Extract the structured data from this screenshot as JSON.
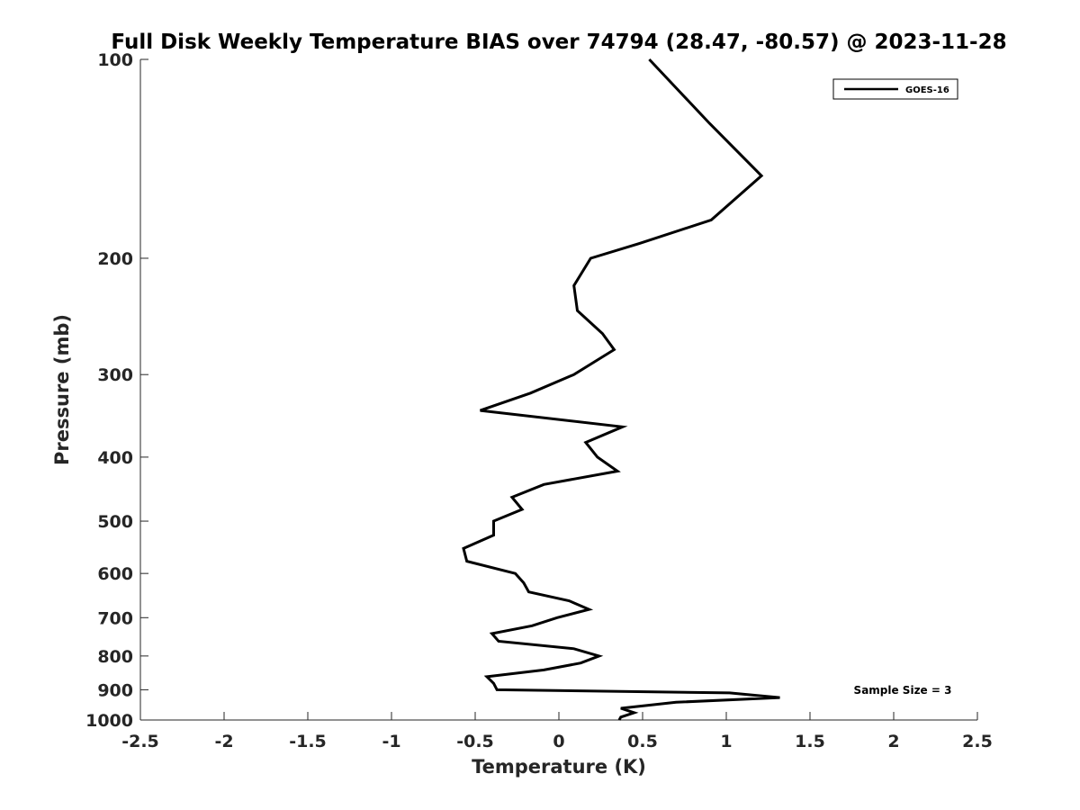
{
  "chart_data": {
    "type": "line",
    "title": "Full Disk Weekly Temperature BIAS over 74794 (28.47, -80.57) @ 2023-11-28",
    "xlabel": "Temperature (K)",
    "ylabel": "Pressure (mb)",
    "xlim": [
      -2.5,
      2.5
    ],
    "ylim": [
      100,
      1000
    ],
    "y_scale": "log",
    "y_reversed": true,
    "grid": false,
    "legend_position": "top-right",
    "xticks": [
      "-2.5",
      "-2",
      "-1.5",
      "-1",
      "-0.5",
      "0",
      "0.5",
      "1",
      "1.5",
      "2",
      "2.5"
    ],
    "yticks": [
      "100",
      "200",
      "300",
      "400",
      "500",
      "600",
      "700",
      "800",
      "900",
      "1000"
    ],
    "annotation": "Sample Size = 3",
    "series": [
      {
        "name": "GOES-16",
        "color": "#000000",
        "points": [
          [
            0.54,
            100
          ],
          [
            0.9,
            125
          ],
          [
            1.21,
            150
          ],
          [
            0.91,
            175
          ],
          [
            0.48,
            190
          ],
          [
            0.19,
            200
          ],
          [
            0.09,
            220
          ],
          [
            0.11,
            240
          ],
          [
            0.26,
            260
          ],
          [
            0.33,
            275
          ],
          [
            0.09,
            300
          ],
          [
            -0.17,
            320
          ],
          [
            -0.47,
            340
          ],
          [
            0.38,
            360
          ],
          [
            0.16,
            380
          ],
          [
            0.23,
            400
          ],
          [
            0.35,
            420
          ],
          [
            -0.09,
            440
          ],
          [
            -0.28,
            460
          ],
          [
            -0.22,
            480
          ],
          [
            -0.39,
            500
          ],
          [
            -0.39,
            525
          ],
          [
            -0.57,
            550
          ],
          [
            -0.55,
            575
          ],
          [
            -0.26,
            600
          ],
          [
            -0.21,
            620
          ],
          [
            -0.18,
            640
          ],
          [
            0.06,
            660
          ],
          [
            0.18,
            680
          ],
          [
            -0.01,
            700
          ],
          [
            -0.16,
            720
          ],
          [
            -0.4,
            740
          ],
          [
            -0.36,
            760
          ],
          [
            0.09,
            780
          ],
          [
            0.24,
            800
          ],
          [
            0.13,
            820
          ],
          [
            -0.09,
            840
          ],
          [
            -0.43,
            860
          ],
          [
            -0.39,
            880
          ],
          [
            -0.37,
            900
          ],
          [
            1.02,
            910
          ],
          [
            1.32,
            925
          ],
          [
            0.7,
            940
          ],
          [
            0.37,
            960
          ],
          [
            0.45,
            975
          ],
          [
            0.37,
            990
          ],
          [
            0.36,
            1000
          ]
        ]
      }
    ]
  }
}
